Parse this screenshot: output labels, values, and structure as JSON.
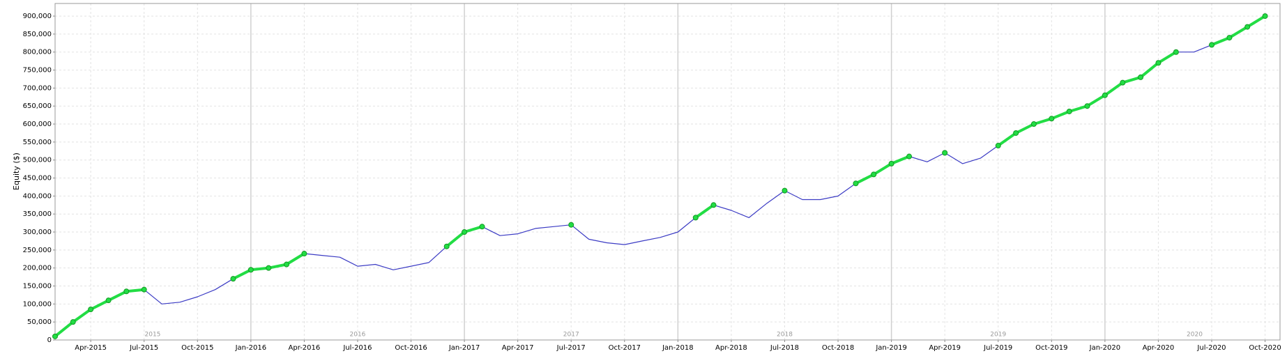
{
  "chart_data": {
    "type": "line",
    "y_label": "Equity ($)",
    "x": [
      2015.083,
      2015.167,
      2015.25,
      2015.333,
      2015.417,
      2015.5,
      2015.583,
      2015.667,
      2015.75,
      2015.833,
      2015.917,
      2016.0,
      2016.083,
      2016.167,
      2016.25,
      2016.333,
      2016.417,
      2016.5,
      2016.583,
      2016.667,
      2016.75,
      2016.833,
      2016.917,
      2017.0,
      2017.083,
      2017.167,
      2017.25,
      2017.333,
      2017.417,
      2017.5,
      2017.583,
      2017.667,
      2017.75,
      2017.833,
      2017.917,
      2018.0,
      2018.083,
      2018.167,
      2018.25,
      2018.333,
      2018.417,
      2018.5,
      2018.583,
      2018.667,
      2018.75,
      2018.833,
      2018.917,
      2019.0,
      2019.083,
      2019.167,
      2019.25,
      2019.333,
      2019.417,
      2019.5,
      2019.583,
      2019.667,
      2019.75,
      2019.833,
      2019.917,
      2020.0,
      2020.083,
      2020.167,
      2020.25,
      2020.333,
      2020.417,
      2020.5,
      2020.583,
      2020.667,
      2020.75
    ],
    "series": [
      {
        "color": "#3b3bc4",
        "values": [
          10000,
          50000,
          85000,
          110000,
          135000,
          140000,
          100000,
          105000,
          120000,
          140000,
          170000,
          195000,
          200000,
          210000,
          240000,
          235000,
          230000,
          205000,
          210000,
          195000,
          205000,
          215000,
          260000,
          300000,
          315000,
          290000,
          295000,
          310000,
          315000,
          320000,
          280000,
          270000,
          265000,
          275000,
          285000,
          300000,
          340000,
          375000,
          360000,
          340000,
          380000,
          415000,
          390000,
          390000,
          400000,
          435000,
          460000,
          490000,
          510000,
          495000,
          520000,
          490000,
          505000,
          540000,
          575000,
          600000,
          615000,
          635000,
          650000,
          680000,
          715000,
          730000,
          770000,
          800000,
          800000,
          820000,
          840000,
          870000,
          900000
        ]
      },
      {
        "color": "#22dd44",
        "values": [
          10000,
          50000,
          85000,
          110000,
          135000,
          140000,
          null,
          null,
          null,
          null,
          170000,
          195000,
          200000,
          210000,
          240000,
          null,
          null,
          null,
          null,
          null,
          null,
          null,
          260000,
          300000,
          315000,
          null,
          null,
          null,
          null,
          320000,
          null,
          null,
          null,
          null,
          null,
          null,
          340000,
          375000,
          null,
          null,
          null,
          415000,
          null,
          null,
          null,
          435000,
          460000,
          490000,
          510000,
          null,
          520000,
          null,
          null,
          540000,
          575000,
          600000,
          615000,
          635000,
          650000,
          680000,
          715000,
          730000,
          770000,
          800000,
          null,
          820000,
          840000,
          870000,
          900000
        ]
      }
    ],
    "xlim": [
      2015.083,
      2020.82
    ],
    "xticks": [
      {
        "value": 2015.25,
        "label": "Apr-2015"
      },
      {
        "value": 2015.5,
        "label": "Jul-2015"
      },
      {
        "value": 2015.75,
        "label": "Oct-2015"
      },
      {
        "value": 2016.0,
        "label": "Jan-2016"
      },
      {
        "value": 2016.25,
        "label": "Apr-2016"
      },
      {
        "value": 2016.5,
        "label": "Jul-2016"
      },
      {
        "value": 2016.75,
        "label": "Oct-2016"
      },
      {
        "value": 2017.0,
        "label": "Jan-2017"
      },
      {
        "value": 2017.25,
        "label": "Apr-2017"
      },
      {
        "value": 2017.5,
        "label": "Jul-2017"
      },
      {
        "value": 2017.75,
        "label": "Oct-2017"
      },
      {
        "value": 2018.0,
        "label": "Jan-2018"
      },
      {
        "value": 2018.25,
        "label": "Apr-2018"
      },
      {
        "value": 2018.5,
        "label": "Jul-2018"
      },
      {
        "value": 2018.75,
        "label": "Oct-2018"
      },
      {
        "value": 2019.0,
        "label": "Jan-2019"
      },
      {
        "value": 2019.25,
        "label": "Apr-2019"
      },
      {
        "value": 2019.5,
        "label": "Jul-2019"
      },
      {
        "value": 2019.75,
        "label": "Oct-2019"
      },
      {
        "value": 2020.0,
        "label": "Jan-2020"
      },
      {
        "value": 2020.25,
        "label": "Apr-2020"
      },
      {
        "value": 2020.5,
        "label": "Jul-2020"
      },
      {
        "value": 2020.75,
        "label": "Oct-2020"
      }
    ],
    "year_labels": [
      {
        "value": 2015.54,
        "label": "2015"
      },
      {
        "value": 2016.5,
        "label": "2016"
      },
      {
        "value": 2017.5,
        "label": "2017"
      },
      {
        "value": 2018.5,
        "label": "2018"
      },
      {
        "value": 2019.5,
        "label": "2019"
      },
      {
        "value": 2020.42,
        "label": "2020"
      }
    ],
    "ylim": [
      0,
      935000
    ],
    "yticks": [
      0,
      {
        "value": 50000,
        "label": "50,000"
      },
      {
        "value": 100000,
        "label": "100,000"
      },
      {
        "value": 150000,
        "label": "150,000"
      },
      {
        "value": 200000,
        "label": "200,000"
      },
      {
        "value": 250000,
        "label": "250,000"
      },
      {
        "value": 300000,
        "label": "300,000"
      },
      {
        "value": 350000,
        "label": "350,000"
      },
      {
        "value": 400000,
        "label": "400,000"
      },
      {
        "value": 450000,
        "label": "450,000"
      },
      {
        "value": 500000,
        "label": "500,000"
      },
      {
        "value": 550000,
        "label": "550,000"
      },
      {
        "value": 600000,
        "label": "600,000"
      },
      {
        "value": 650000,
        "label": "650,000"
      },
      {
        "value": 700000,
        "label": "700,000"
      },
      {
        "value": 750000,
        "label": "750,000"
      },
      {
        "value": 800000,
        "label": "800,000"
      },
      {
        "value": 850000,
        "label": "850,000"
      },
      {
        "value": 900000,
        "label": "900,000"
      }
    ],
    "grid": true
  }
}
